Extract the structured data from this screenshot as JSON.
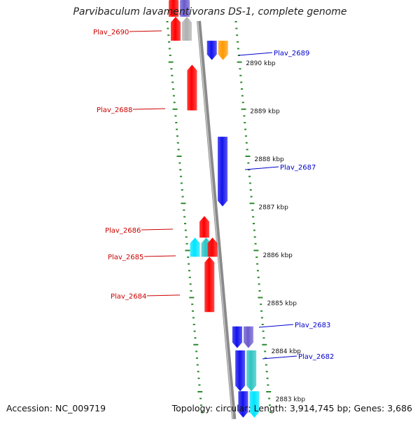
{
  "title": "Parvibaculum lavamentivorans DS-1, complete genome",
  "footer": {
    "accession": "Accession: NC_009719",
    "summary": "Topology: circular; Length: 3,914,745 bp; Genes: 3,686"
  },
  "colors": {
    "backbone": "#8a8a8a",
    "tick": "#2e8b2e",
    "label_forward": "#cc0000",
    "label_reverse": "#0000cc",
    "red": "#ff0000",
    "blue": "#1212ee",
    "orange": "#ff9900",
    "teal": "#2ec4c4",
    "purple": "#6a5acd",
    "grey": "#b0b0b0",
    "cyan": "#00e5ff"
  },
  "scale": {
    "unit": "kbp",
    "labels": [
      {
        "text": "2890 kbp",
        "kbp": 2890
      },
      {
        "text": "2889 kbp",
        "kbp": 2889
      },
      {
        "text": "2888 kbp",
        "kbp": 2888
      },
      {
        "text": "2887 kbp",
        "kbp": 2887
      },
      {
        "text": "2886 kbp",
        "kbp": 2886
      },
      {
        "text": "2885 kbp",
        "kbp": 2885
      },
      {
        "text": "2884 kbp",
        "kbp": 2884
      },
      {
        "text": "2883 kbp",
        "kbp": 2883
      }
    ]
  },
  "gene_labels": [
    {
      "text": "Plav_2690",
      "strand": "forward"
    },
    {
      "text": "Plav_2689",
      "strand": "reverse"
    },
    {
      "text": "Plav_2688",
      "strand": "forward"
    },
    {
      "text": "Plav_2687",
      "strand": "reverse"
    },
    {
      "text": "Plav_2686",
      "strand": "forward"
    },
    {
      "text": "Plav_2685",
      "strand": "forward"
    },
    {
      "text": "Plav_2684",
      "strand": "forward"
    },
    {
      "text": "Plav_2683",
      "strand": "reverse"
    },
    {
      "text": "Plav_2682",
      "strand": "reverse"
    }
  ],
  "features": [
    {
      "strand": "forward",
      "color": "purple",
      "start_kbp": 2890.95,
      "end_kbp": 2891.4
    },
    {
      "strand": "forward",
      "color": "red",
      "start_kbp": 2890.95,
      "end_kbp": 2891.4
    },
    {
      "strand": "forward",
      "color": "grey",
      "start_kbp": 2890.45,
      "end_kbp": 2890.95
    },
    {
      "strand": "forward",
      "color": "red",
      "start_kbp": 2890.45,
      "end_kbp": 2890.95
    },
    {
      "strand": "reverse",
      "color": "blue",
      "start_kbp": 2890.05,
      "end_kbp": 2890.45
    },
    {
      "strand": "reverse",
      "color": "orange",
      "start_kbp": 2890.05,
      "end_kbp": 2890.45
    },
    {
      "strand": "forward",
      "color": "red",
      "start_kbp": 2889.0,
      "end_kbp": 2889.95
    },
    {
      "strand": "reverse",
      "color": "blue",
      "start_kbp": 2887.0,
      "end_kbp": 2888.45
    },
    {
      "strand": "forward",
      "color": "red",
      "start_kbp": 2886.35,
      "end_kbp": 2886.8
    },
    {
      "strand": "forward",
      "color": "teal",
      "start_kbp": 2885.95,
      "end_kbp": 2886.35
    },
    {
      "strand": "forward",
      "color": "cyan",
      "start_kbp": 2885.95,
      "end_kbp": 2886.35
    },
    {
      "strand": "forward",
      "color": "red",
      "start_kbp": 2885.95,
      "end_kbp": 2886.35
    },
    {
      "strand": "forward",
      "color": "red",
      "start_kbp": 2884.8,
      "end_kbp": 2885.95
    },
    {
      "strand": "reverse",
      "color": "blue",
      "start_kbp": 2884.05,
      "end_kbp": 2884.5
    },
    {
      "strand": "reverse",
      "color": "purple",
      "start_kbp": 2884.05,
      "end_kbp": 2884.5
    },
    {
      "strand": "reverse",
      "color": "blue",
      "start_kbp": 2883.15,
      "end_kbp": 2884.0
    },
    {
      "strand": "reverse",
      "color": "teal",
      "start_kbp": 2883.15,
      "end_kbp": 2884.0
    },
    {
      "strand": "reverse",
      "color": "blue",
      "start_kbp": 2882.6,
      "end_kbp": 2883.15
    },
    {
      "strand": "reverse",
      "color": "cyan",
      "start_kbp": 2882.6,
      "end_kbp": 2883.15
    }
  ]
}
